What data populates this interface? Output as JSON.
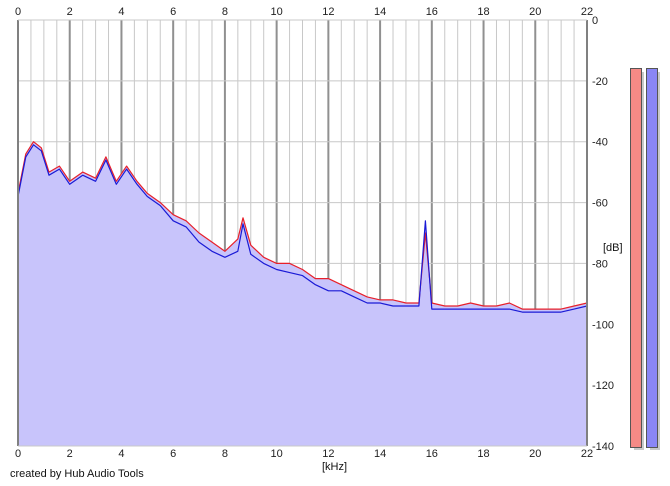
{
  "credit": "created by Hub Audio Tools",
  "colors": {
    "background": "#ffffff",
    "grid_minor": "#c8c8c8",
    "grid_major": "#909090",
    "fill": "#c8c4fb",
    "left_channel": "#e8202a",
    "right_channel": "#1a1ad6",
    "meter_left": "#f58a86",
    "meter_right": "#8a86f5"
  },
  "chart_data": {
    "type": "line",
    "xlabel": "[kHz]",
    "ylabel": "[dB]",
    "xlim": [
      0,
      22
    ],
    "ylim": [
      -140,
      0
    ],
    "x_ticks": [
      "0",
      "2",
      "4",
      "6",
      "8",
      "10",
      "12",
      "14",
      "16",
      "18",
      "20",
      "22"
    ],
    "y_ticks": [
      "0",
      "-20",
      "-40",
      "-60",
      "-80",
      "-100",
      "-120",
      "-140"
    ],
    "x": [
      0,
      0.3,
      0.6,
      0.9,
      1.2,
      1.6,
      2.0,
      2.5,
      3.0,
      3.4,
      3.8,
      4.2,
      4.6,
      5.0,
      5.5,
      6.0,
      6.5,
      7.0,
      7.5,
      8.0,
      8.5,
      8.7,
      9.0,
      9.5,
      10.0,
      10.5,
      11.0,
      11.5,
      12.0,
      12.5,
      13.0,
      13.5,
      14.0,
      14.5,
      15.0,
      15.5,
      15.75,
      16.0,
      16.5,
      17.0,
      17.5,
      18.0,
      18.5,
      19.0,
      19.5,
      20.0,
      20.5,
      21.0,
      21.5,
      22.0
    ],
    "series": [
      {
        "values": [
          -57,
          -44,
          -40,
          -42,
          -50,
          -48,
          -53,
          -50,
          -52,
          -45,
          -53,
          -48,
          -53,
          -57,
          -60,
          -64,
          -66,
          -70,
          -73,
          -76,
          -72,
          -65,
          -74,
          -78,
          -80,
          -80,
          -82,
          -85,
          -85,
          -87,
          -89,
          -91,
          -92,
          -92,
          -93,
          -93,
          -70,
          -93,
          -94,
          -94,
          -93,
          -94,
          -94,
          -93,
          -95,
          -95,
          -95,
          -95,
          -94,
          -93
        ]
      },
      {
        "values": [
          -58,
          -45,
          -41,
          -43,
          -51,
          -49,
          -54,
          -51,
          -53,
          -46,
          -54,
          -49,
          -54,
          -58,
          -61,
          -66,
          -68,
          -73,
          -76,
          -78,
          -76,
          -67,
          -77,
          -80,
          -82,
          -83,
          -84,
          -87,
          -89,
          -89,
          -91,
          -93,
          -93,
          -94,
          -94,
          -94,
          -66,
          -95,
          -95,
          -95,
          -95,
          -95,
          -95,
          -95,
          -96,
          -96,
          -96,
          -96,
          -95,
          -94
        ]
      }
    ]
  }
}
